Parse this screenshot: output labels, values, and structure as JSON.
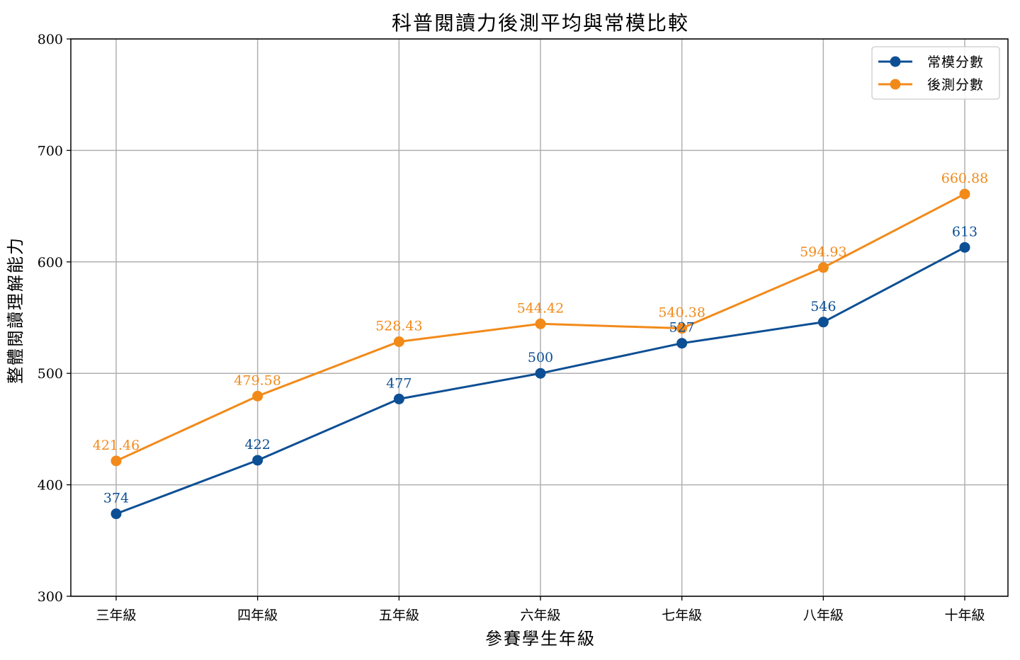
{
  "chart_data": {
    "type": "line",
    "title": "科普閱讀力後測平均與常模比較",
    "xlabel": "參賽學生年級",
    "ylabel": "整體閱讀理解能力",
    "categories": [
      "三年級",
      "四年級",
      "五年級",
      "六年級",
      "七年級",
      "八年級",
      "十年級"
    ],
    "ylim": [
      300,
      800
    ],
    "yticks": [
      300,
      400,
      500,
      600,
      700,
      800
    ],
    "grid": true,
    "legend_position": "top-right",
    "series": [
      {
        "name": "常模分數",
        "color": "#0d4f94",
        "values": [
          374,
          422,
          477,
          500,
          527,
          546,
          613
        ],
        "labels": [
          "374",
          "422",
          "477",
          "500",
          "527",
          "546",
          "613"
        ]
      },
      {
        "name": "後測分數",
        "color": "#f28a1a",
        "values": [
          421.46,
          479.58,
          528.43,
          544.42,
          540.38,
          594.93,
          660.88
        ],
        "labels": [
          "421.46",
          "479.58",
          "528.43",
          "544.42",
          "540.38",
          "594.93",
          "660.88"
        ]
      }
    ]
  }
}
